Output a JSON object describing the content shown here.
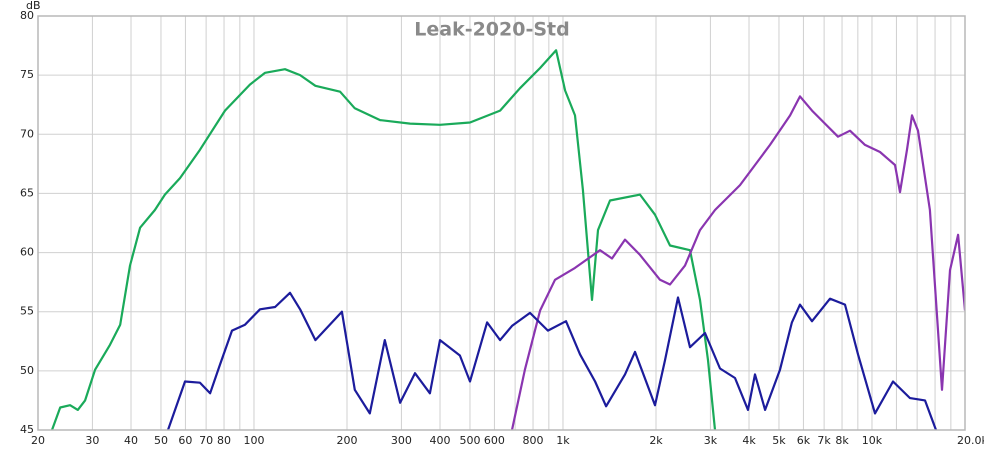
{
  "chart_data": {
    "type": "line",
    "title": "Leak-2020-Std",
    "y_label": "dB",
    "xscale": "log",
    "grid": true,
    "xlim": [
      20,
      20000
    ],
    "ylim": [
      45,
      80
    ],
    "yticks": [
      45,
      50,
      55,
      60,
      65,
      70,
      75,
      80
    ],
    "xticks": [
      20,
      30,
      40,
      50,
      60,
      70,
      80,
      100,
      200,
      300,
      400,
      500,
      600,
      800,
      {
        "value": 1000,
        "label": "1k"
      },
      {
        "value": 2000,
        "label": "2k"
      },
      {
        "value": 3000,
        "label": "3k"
      },
      {
        "value": 4000,
        "label": "4k"
      },
      {
        "value": 5000,
        "label": "5k"
      },
      {
        "value": 6000,
        "label": "6k"
      },
      {
        "value": 7000,
        "label": "7k"
      },
      {
        "value": 8000,
        "label": "8k"
      },
      {
        "value": 10000,
        "label": "10k"
      },
      {
        "value": 20000,
        "label": "20.0k Hz"
      }
    ],
    "xminor": [
      90,
      700,
      900,
      9000,
      12000,
      14000,
      16000,
      18000
    ],
    "series": [
      {
        "color": "#1aaa5a",
        "x": [
          22.2,
          23.6,
          25.4,
          26.9,
          28.4,
          30.6,
          34.2,
          36.9,
          39.7,
          42.8,
          47.8,
          51.5,
          57.6,
          66.9,
          80.6,
          97,
          108.6,
          126,
          141,
          158,
          190,
          212,
          256,
          320,
          400,
          500,
          626,
          726,
          843,
          950,
          1016,
          1094,
          1160,
          1241,
          1298,
          1420,
          1775,
          1985,
          2220,
          2577,
          2777,
          2946,
          3104
        ],
        "values": [
          45,
          46.9,
          47.1,
          46.7,
          47.5,
          50.1,
          52.2,
          53.9,
          58.9,
          62.1,
          63.6,
          64.9,
          66.3,
          68.7,
          72.0,
          74.2,
          75.2,
          75.5,
          75,
          74.1,
          73.6,
          72.2,
          71.2,
          70.9,
          70.8,
          71.0,
          72.0,
          73.9,
          75.6,
          77.1,
          73.7,
          71.6,
          65.3,
          56.0,
          61.9,
          64.4,
          64.9,
          63.2,
          60.6,
          60.2,
          56,
          50.9,
          45
        ]
      },
      {
        "color": "#8a35b0",
        "x": [
          684,
          753,
          843,
          942,
          1094,
          1318,
          1441,
          1588,
          1775,
          2061,
          2220,
          2482,
          2777,
          3104,
          3739,
          4677,
          5431,
          5848,
          6396,
          7763,
          8489,
          9491,
          10617,
          11872,
          12322,
          12978,
          13472,
          14092,
          15400,
          16850,
          17890,
          18992,
          20000
        ],
        "values": [
          45,
          50.1,
          55.1,
          57.7,
          58.7,
          60.2,
          59.5,
          61.1,
          59.8,
          57.7,
          57.3,
          58.9,
          61.9,
          63.6,
          65.7,
          69.1,
          71.6,
          73.2,
          72.0,
          69.8,
          70.3,
          69.1,
          68.5,
          67.4,
          65.1,
          68.7,
          71.6,
          70.3,
          63.6,
          48.4,
          58.5,
          61.5,
          55.1
        ]
      },
      {
        "color": "#1c1c9c",
        "x": [
          52.7,
          59.8,
          66.9,
          72.1,
          77.6,
          84.9,
          93.5,
          104.6,
          117,
          130.8,
          141,
          158,
          176,
          192.6,
          212,
          237,
          265,
          297,
          332,
          371,
          400,
          464,
          500,
          568,
          626,
          684,
          782,
          894,
          1023,
          1135,
          1270,
          1379,
          1588,
          1710,
          1985,
          2138,
          2356,
          2577,
          2882,
          3222,
          3604,
          3970,
          4181,
          4508,
          5038,
          5508,
          5848,
          6396,
          7316,
          8180,
          9010,
          10225,
          11695,
          13274,
          14850,
          16108
        ],
        "values": [
          45,
          49.1,
          49.0,
          48.1,
          50.5,
          53.4,
          53.9,
          55.2,
          55.4,
          56.6,
          55.2,
          52.6,
          53.9,
          55.0,
          48.4,
          46.4,
          52.6,
          47.3,
          49.8,
          48.1,
          52.6,
          51.3,
          49.1,
          54.1,
          52.6,
          53.8,
          54.9,
          53.4,
          54.2,
          51.4,
          49.1,
          47.0,
          49.7,
          51.6,
          47.1,
          50.9,
          56.2,
          52.0,
          53.2,
          50.2,
          49.4,
          46.7,
          49.7,
          46.7,
          50.1,
          54.1,
          55.6,
          54.2,
          56.1,
          55.6,
          51.4,
          46.4,
          49.1,
          47.7,
          47.5,
          45
        ]
      }
    ]
  }
}
